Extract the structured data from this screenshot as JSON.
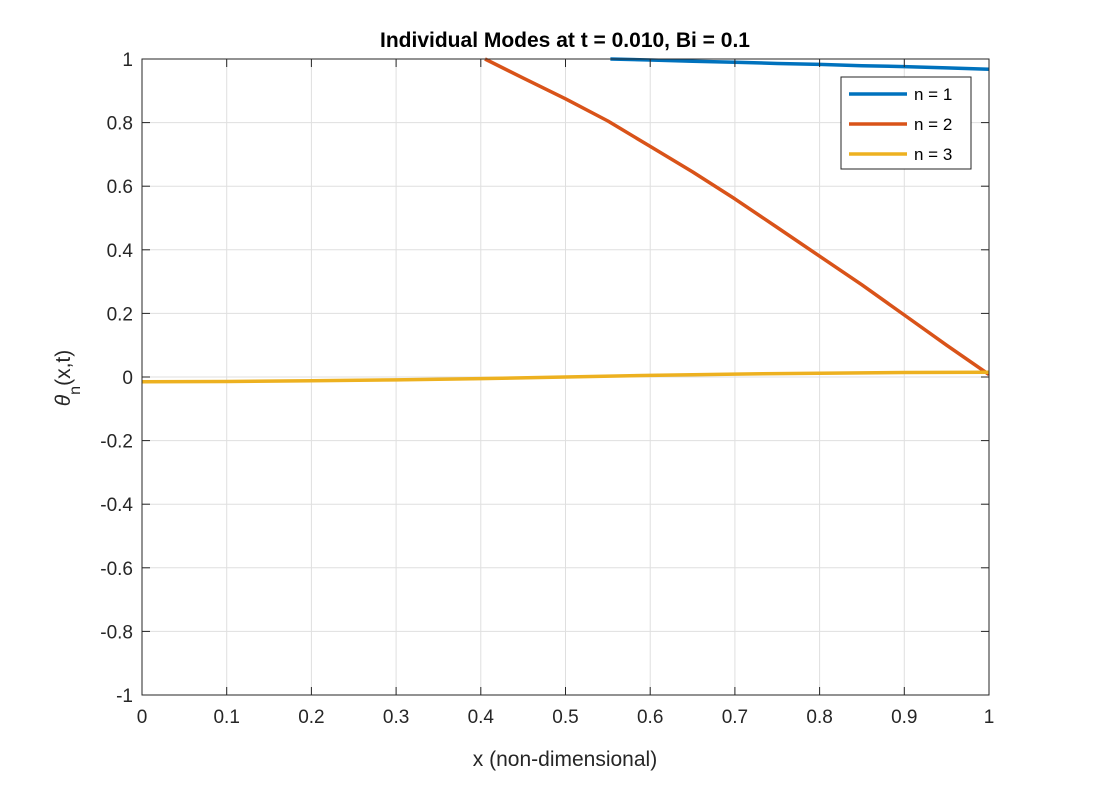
{
  "chart_data": {
    "type": "line",
    "title": "Individual Modes at t = 0.010, Bi = 0.1",
    "xlabel": "x (non-dimensional)",
    "ylabel": {
      "symbol": "θ",
      "subscript": "n",
      "suffix": "(x,t)"
    },
    "xlim": [
      0,
      1
    ],
    "ylim": [
      -1,
      1
    ],
    "xticks": [
      0,
      0.1,
      0.2,
      0.3,
      0.4,
      0.5,
      0.6,
      0.7,
      0.8,
      0.9,
      1
    ],
    "xtick_labels": [
      "0",
      "0.1",
      "0.2",
      "0.3",
      "0.4",
      "0.5",
      "0.6",
      "0.7",
      "0.8",
      "0.9",
      "1"
    ],
    "yticks": [
      -1,
      -0.8,
      -0.6,
      -0.4,
      -0.2,
      0,
      0.2,
      0.4,
      0.6,
      0.8,
      1
    ],
    "ytick_labels": [
      "-1",
      "-0.8",
      "-0.6",
      "-0.4",
      "-0.2",
      "0",
      "0.2",
      "0.4",
      "0.6",
      "0.8",
      "1"
    ],
    "grid": true,
    "legend_position": "top-right",
    "series": [
      {
        "name": "n = 1",
        "color": "#0072BD",
        "x": [
          0.553,
          0.6,
          0.65,
          0.7,
          0.75,
          0.8,
          0.85,
          0.9,
          0.95,
          1.0
        ],
        "y": [
          1.0,
          0.997,
          0.993,
          0.99,
          0.986,
          0.983,
          0.979,
          0.976,
          0.972,
          0.968
        ]
      },
      {
        "name": "n = 2",
        "color": "#D95319",
        "x": [
          0.405,
          0.45,
          0.5,
          0.55,
          0.6,
          0.65,
          0.7,
          0.75,
          0.8,
          0.85,
          0.9,
          0.95,
          1.0
        ],
        "y": [
          1.0,
          0.94,
          0.875,
          0.805,
          0.725,
          0.645,
          0.56,
          0.47,
          0.38,
          0.29,
          0.195,
          0.1,
          0.008
        ]
      },
      {
        "name": "n = 3",
        "color": "#EDB120",
        "x": [
          0,
          0.1,
          0.2,
          0.3,
          0.4,
          0.5,
          0.6,
          0.7,
          0.8,
          0.9,
          1.0
        ],
        "y": [
          -0.015,
          -0.014,
          -0.012,
          -0.009,
          -0.005,
          0.0,
          0.005,
          0.009,
          0.012,
          0.014,
          0.015
        ]
      }
    ]
  }
}
